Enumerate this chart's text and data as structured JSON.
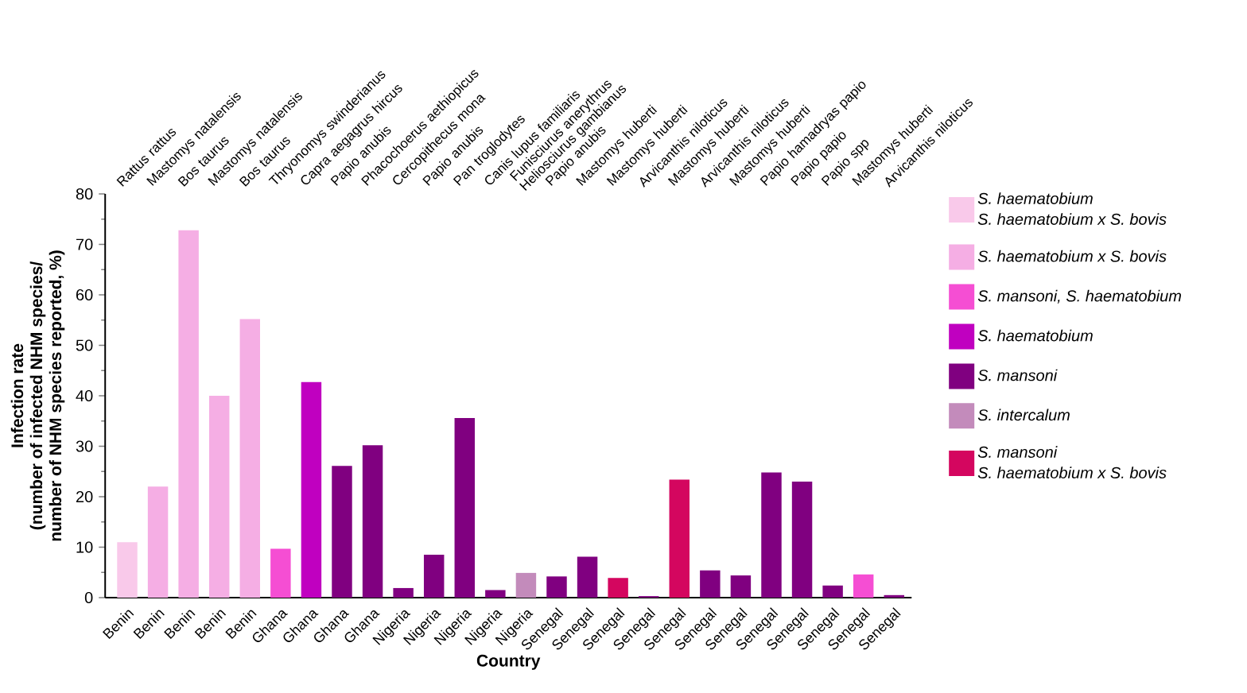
{
  "chart_data": {
    "type": "bar",
    "xlabel": "Country",
    "ylabel": "Infection rate\n(number of infected NHM species/\nnumber of NHM species reported, %)",
    "categories": [
      "Benin",
      "Benin",
      "Benin",
      "Benin",
      "Benin",
      "Ghana",
      "Ghana",
      "Ghana",
      "Ghana",
      "Nigeria",
      "Nigeria",
      "Nigeria",
      "Nigeria",
      "Nigeria",
      "Senegal",
      "Senegal",
      "Senegal",
      "Senegal",
      "Senegal",
      "Senegal",
      "Senegal",
      "Senegal",
      "Senegal",
      "Senegal",
      "Senegal",
      "Senegal"
    ],
    "annotations": [
      "Rattus rattus",
      "Mastomys natalensis",
      "Bos taurus",
      "Mastomys natalensis",
      "Bos taurus",
      "Thryonomys swinderianus",
      "Capra aegagrus hircus",
      "Papio anubis",
      "Phacochoerus aethiopicus",
      "Cercopithecus mona",
      "Papio anubis",
      "Pan troglodytes",
      "Canis lupus familiaris",
      "Funisciurus anerythrus\nHeliosciurus gambianus",
      "Papio anubis",
      "Mastomys huberti",
      "Mastomys huberti",
      "Arvicanthis niloticus",
      "Mastomys huberti",
      "Arvicanthis niloticus",
      "Mastomys huberti",
      "Papio hamadryas papio",
      "Papio papio",
      "Papio spp",
      "Mastomys huberti",
      "Arvicanthis niloticus"
    ],
    "series": [
      {
        "name": "S. haematobium\nS. haematobium x S. bovis",
        "color": "#f9c9ea",
        "values": [
          11,
          null,
          null,
          null,
          null,
          null,
          null,
          null,
          null,
          null,
          null,
          null,
          null,
          null,
          null,
          null,
          null,
          null,
          null,
          null,
          null,
          null,
          null,
          null,
          null,
          null
        ]
      },
      {
        "name": "S. haematobium x S. bovis",
        "color": "#f5aee4",
        "values": [
          null,
          22,
          72.8,
          40,
          55.2,
          null,
          null,
          null,
          null,
          null,
          null,
          null,
          null,
          null,
          null,
          null,
          null,
          null,
          null,
          null,
          null,
          null,
          null,
          null,
          null,
          null
        ]
      },
      {
        "name": "S. mansoni, S. haematobium",
        "color": "#f54ed3",
        "values": [
          null,
          null,
          null,
          null,
          null,
          9.7,
          null,
          null,
          null,
          null,
          null,
          null,
          null,
          null,
          null,
          null,
          null,
          null,
          null,
          null,
          null,
          null,
          null,
          null,
          4.6,
          null
        ]
      },
      {
        "name": "S. haematobium",
        "color": "#c000c0",
        "values": [
          null,
          null,
          null,
          null,
          null,
          null,
          42.7,
          null,
          null,
          null,
          null,
          null,
          null,
          null,
          null,
          null,
          null,
          null,
          null,
          null,
          null,
          null,
          null,
          null,
          null,
          null
        ]
      },
      {
        "name": "S. mansoni",
        "color": "#800080",
        "values": [
          null,
          null,
          null,
          null,
          null,
          null,
          null,
          26.1,
          30.2,
          1.9,
          8.5,
          35.6,
          1.5,
          null,
          4.2,
          8.1,
          null,
          0.3,
          null,
          5.4,
          4.4,
          24.8,
          23,
          2.4,
          null,
          0.5
        ]
      },
      {
        "name": "S. intercalum",
        "color": "#c38bbb",
        "values": [
          null,
          null,
          null,
          null,
          null,
          null,
          null,
          null,
          null,
          null,
          null,
          null,
          null,
          4.9,
          null,
          null,
          null,
          null,
          null,
          null,
          null,
          null,
          null,
          null,
          null,
          null
        ]
      },
      {
        "name": "S. mansoni\nS. haematobium x S. bovis",
        "color": "#d4065f",
        "values": [
          null,
          null,
          null,
          null,
          null,
          null,
          null,
          null,
          null,
          null,
          null,
          null,
          null,
          null,
          null,
          null,
          3.9,
          null,
          23.4,
          null,
          null,
          null,
          null,
          null,
          null,
          null
        ]
      }
    ],
    "ylim": [
      0,
      80
    ],
    "yticks": [
      0,
      10,
      20,
      30,
      40,
      50,
      60,
      70,
      80
    ],
    "legend": "right"
  }
}
